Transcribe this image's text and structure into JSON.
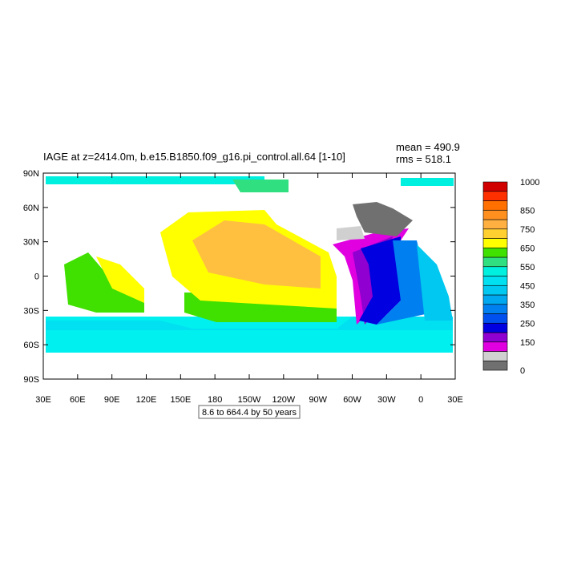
{
  "title": "IAGE at z=2414.0m, b.e15.B1850.f09_g16.pi_control.all.64 [1-10]",
  "stats": {
    "mean": "mean = 490.9",
    "rms": "rms = 518.1"
  },
  "map": {
    "xticks": [
      "30E",
      "60E",
      "90E",
      "120E",
      "150E",
      "180",
      "150W",
      "120W",
      "90W",
      "60W",
      "30W",
      "0",
      "30E"
    ],
    "yticks": [
      "90N",
      "60N",
      "30N",
      "0",
      "30S",
      "60S",
      "90S"
    ]
  },
  "colorbar": {
    "lim": [
      0,
      1000
    ],
    "colors": [
      "#707070",
      "#d0d0d0",
      "#e000e0",
      "#9000d0",
      "#0000e0",
      "#0050f0",
      "#0080f0",
      "#00a8f0",
      "#00c8f0",
      "#00e0f0",
      "#00f0e0",
      "#30e080",
      "#40e000",
      "#ffff00",
      "#ffd030",
      "#ffb040",
      "#ff9020",
      "#ff7000",
      "#ff3000",
      "#d00000"
    ],
    "ticks": [
      0,
      150,
      250,
      350,
      450,
      550,
      650,
      750,
      850,
      1000
    ]
  },
  "info": "8.6 to 664.4 by 50 years"
}
